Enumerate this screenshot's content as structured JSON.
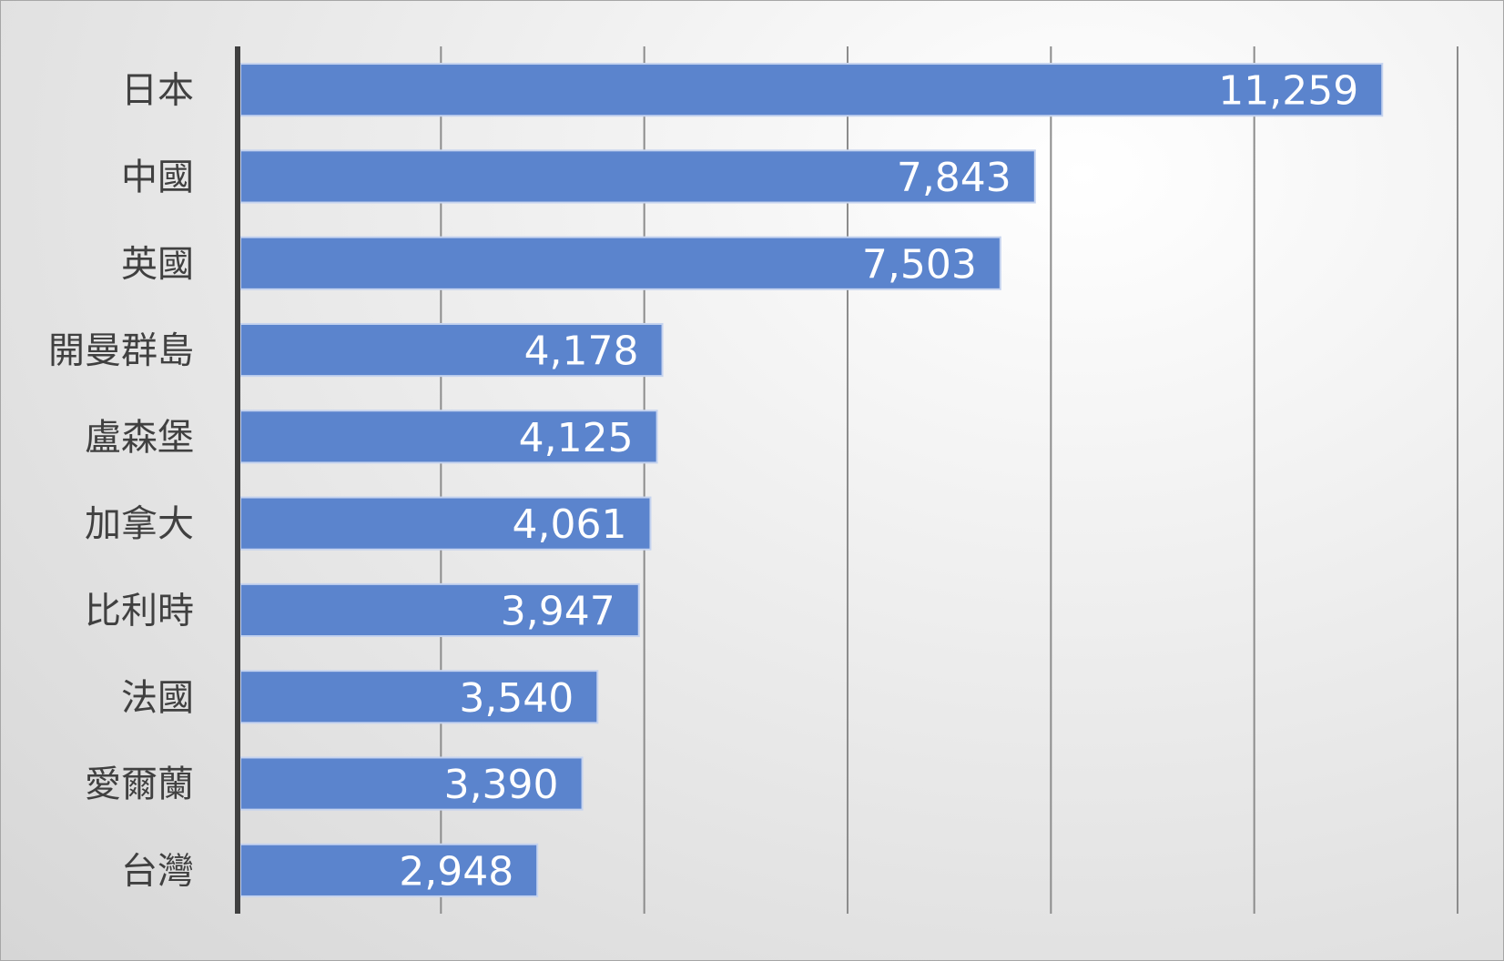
{
  "chart_data": {
    "type": "bar",
    "orientation": "horizontal",
    "title": "",
    "xlabel": "",
    "ylabel": "",
    "categories": [
      "日本",
      "中國",
      "英國",
      "開曼群島",
      "盧森堡",
      "加拿大",
      "比利時",
      "法國",
      "愛爾蘭",
      "台灣"
    ],
    "values": [
      11259,
      7843,
      7503,
      4178,
      4125,
      4061,
      3947,
      3540,
      3390,
      2948
    ],
    "value_labels": [
      "11,259",
      "7,843",
      "7,503",
      "4,178",
      "4,125",
      "4,061",
      "3,947",
      "3,540",
      "3,390",
      "2,948"
    ],
    "xlim": [
      0,
      12000
    ],
    "gridline_step": 2000,
    "x_tick_labels_visible": false,
    "grid": true,
    "legend": "none",
    "colors": {
      "bar": "#5b84cd",
      "bar_border": "#c5d3ef",
      "axis": "#404040",
      "grid": "#8c8c8c",
      "category_text": "#404040",
      "value_text": "#ffffff"
    }
  }
}
